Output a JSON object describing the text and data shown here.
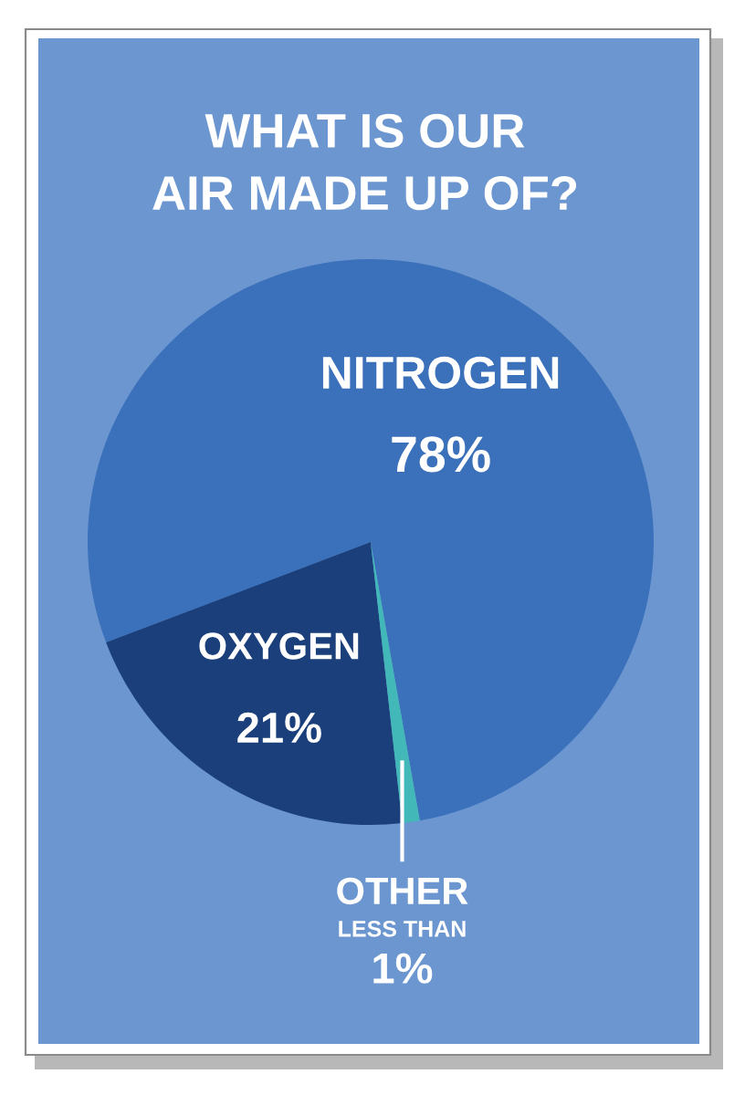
{
  "chart_data": {
    "type": "pie",
    "title": "WHAT IS OUR\nAIR MADE UP OF?",
    "categories": [
      "NITROGEN",
      "OXYGEN",
      "OTHER"
    ],
    "values": [
      78,
      21,
      1
    ],
    "colors": [
      "#3b70ba",
      "#1a3f7b",
      "#43b8b8"
    ],
    "value_labels": [
      "78%",
      "21%",
      "LESS THAN\n1%"
    ]
  }
}
